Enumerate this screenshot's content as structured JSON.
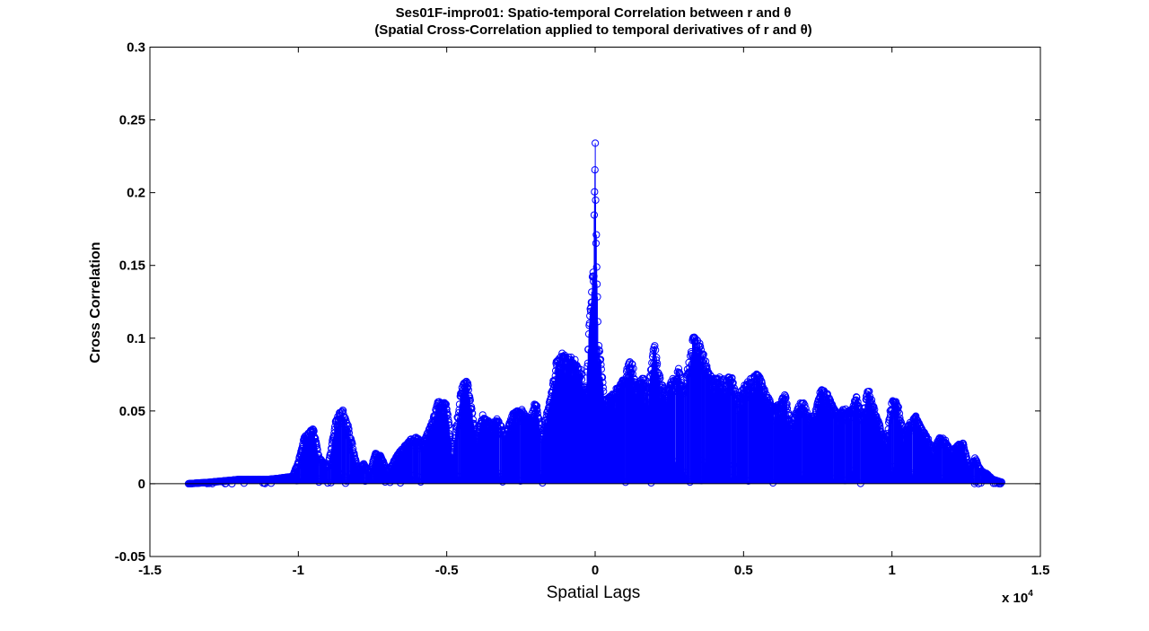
{
  "chart_data": {
    "type": "stem",
    "title_line1": "Ses01F-impro01: Spatio-temporal Correlation between r and θ",
    "title_line2": "(Spatial Cross-Correlation applied to temporal derivatives of r and θ)",
    "xlabel": "Spatial Lags",
    "ylabel": "Cross Correlation",
    "x_exponent_label": "x 10",
    "x_exponent_power": "4",
    "xlim": [
      -1.5,
      1.5
    ],
    "ylim": [
      -0.05,
      0.3
    ],
    "xticks": [
      -1.5,
      -1,
      -0.5,
      0,
      0.5,
      1,
      1.5
    ],
    "xtick_labels": [
      "-1.5",
      "-1",
      "-0.5",
      "0",
      "0.5",
      "1",
      "1.5"
    ],
    "yticks": [
      -0.05,
      0,
      0.05,
      0.1,
      0.15,
      0.2,
      0.25,
      0.3
    ],
    "ytick_labels": [
      "-0.05",
      "0",
      "0.05",
      "0.1",
      "0.15",
      "0.2",
      "0.25",
      "0.3"
    ],
    "x_range_of_lags": [
      -1.37,
      1.37
    ],
    "series_color": "#0000ff",
    "envelope": {
      "x": [
        -1.37,
        -1.3,
        -1.25,
        -1.2,
        -1.1,
        -1.02,
        -1.0,
        -0.98,
        -0.95,
        -0.93,
        -0.9,
        -0.87,
        -0.85,
        -0.83,
        -0.8,
        -0.78,
        -0.76,
        -0.74,
        -0.72,
        -0.7,
        -0.66,
        -0.62,
        -0.6,
        -0.58,
        -0.55,
        -0.53,
        -0.5,
        -0.48,
        -0.45,
        -0.43,
        -0.4,
        -0.38,
        -0.35,
        -0.33,
        -0.3,
        -0.28,
        -0.25,
        -0.22,
        -0.2,
        -0.18,
        -0.15,
        -0.13,
        -0.11,
        -0.09,
        -0.07,
        -0.05,
        -0.03,
        -0.02,
        -0.01,
        -0.005,
        0.0,
        0.005,
        0.01,
        0.02,
        0.03,
        0.05,
        0.07,
        0.09,
        0.1,
        0.12,
        0.14,
        0.16,
        0.18,
        0.2,
        0.22,
        0.24,
        0.26,
        0.28,
        0.3,
        0.33,
        0.36,
        0.38,
        0.4,
        0.42,
        0.44,
        0.46,
        0.48,
        0.5,
        0.52,
        0.55,
        0.58,
        0.6,
        0.62,
        0.64,
        0.66,
        0.68,
        0.7,
        0.72,
        0.74,
        0.76,
        0.78,
        0.8,
        0.82,
        0.84,
        0.86,
        0.88,
        0.9,
        0.92,
        0.94,
        0.96,
        0.98,
        1.0,
        1.02,
        1.04,
        1.06,
        1.08,
        1.1,
        1.12,
        1.14,
        1.16,
        1.18,
        1.2,
        1.22,
        1.24,
        1.26,
        1.28,
        1.3,
        1.32,
        1.34,
        1.37
      ],
      "y": [
        0.0,
        0.001,
        0.002,
        0.003,
        0.003,
        0.005,
        0.015,
        0.032,
        0.039,
        0.018,
        0.012,
        0.048,
        0.051,
        0.039,
        0.01,
        0.014,
        0.008,
        0.021,
        0.019,
        0.008,
        0.022,
        0.031,
        0.032,
        0.028,
        0.042,
        0.058,
        0.055,
        0.02,
        0.068,
        0.071,
        0.03,
        0.048,
        0.041,
        0.045,
        0.034,
        0.048,
        0.052,
        0.044,
        0.058,
        0.034,
        0.06,
        0.085,
        0.09,
        0.088,
        0.086,
        0.08,
        0.065,
        0.11,
        0.14,
        0.159,
        0.234,
        0.16,
        0.1,
        0.086,
        0.058,
        0.06,
        0.065,
        0.072,
        0.074,
        0.088,
        0.068,
        0.074,
        0.066,
        0.099,
        0.071,
        0.064,
        0.072,
        0.08,
        0.065,
        0.102,
        0.095,
        0.078,
        0.072,
        0.074,
        0.072,
        0.075,
        0.06,
        0.067,
        0.073,
        0.076,
        0.062,
        0.052,
        0.055,
        0.062,
        0.04,
        0.052,
        0.058,
        0.045,
        0.048,
        0.065,
        0.063,
        0.055,
        0.048,
        0.052,
        0.05,
        0.06,
        0.048,
        0.066,
        0.052,
        0.04,
        0.03,
        0.059,
        0.055,
        0.036,
        0.042,
        0.047,
        0.038,
        0.032,
        0.022,
        0.033,
        0.03,
        0.022,
        0.027,
        0.028,
        0.012,
        0.018,
        0.009,
        0.007,
        0.003,
        0.001
      ]
    }
  }
}
